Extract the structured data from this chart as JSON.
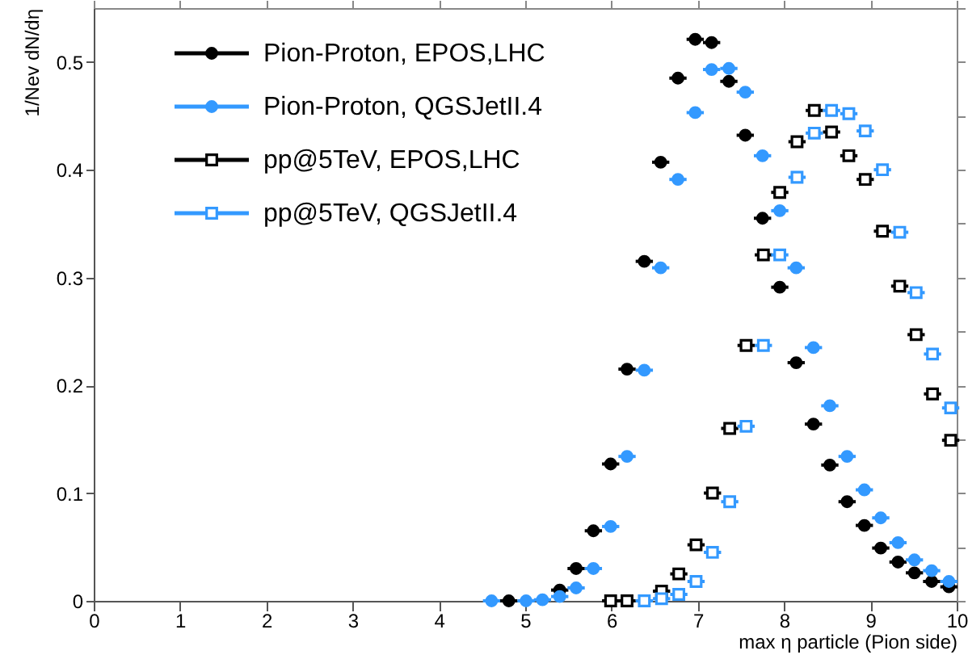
{
  "chart_data": {
    "type": "scatter",
    "xlabel": "max η particle (Pion side)",
    "ylabel": "1/Nev dN/dη",
    "xlim": [
      0,
      10
    ],
    "xticks": [
      0,
      1,
      2,
      3,
      4,
      5,
      6,
      7,
      8,
      9,
      10
    ],
    "ylim": [
      0,
      0.55
    ],
    "yticks": [
      0,
      0.1,
      0.2,
      0.3,
      0.4,
      0.5
    ],
    "grid": false,
    "legend": "top left",
    "series": [
      {
        "name": "Pion-Proton, EPOS,LHC",
        "color": "#000000",
        "marker": "circle",
        "x": [
          4.81,
          5.01,
          5.2,
          5.4,
          5.59,
          5.79,
          5.99,
          6.18,
          6.38,
          6.57,
          6.77,
          6.97,
          7.16,
          7.36,
          7.55,
          7.75,
          7.95,
          8.14,
          8.34,
          8.53,
          8.73,
          8.93,
          9.12,
          9.32,
          9.51,
          9.71,
          9.91
        ],
        "values": [
          0,
          null,
          null,
          0.01,
          0.03,
          0.065,
          0.127,
          0.215,
          0.315,
          0.407,
          0.485,
          0.521,
          0.518,
          0.482,
          0.432,
          0.355,
          0.291,
          0.221,
          0.164,
          0.126,
          0.092,
          0.07,
          0.049,
          0.036,
          0.026,
          0.018,
          0.013
        ],
        "xerrors": [
          0.1,
          null,
          null,
          0.1,
          0.1,
          0.1,
          0.1,
          0.1,
          0.1,
          0.1,
          0.1,
          0.1,
          0.1,
          0.1,
          0.1,
          0.1,
          0.1,
          0.1,
          0.1,
          0.1,
          0.1,
          0.1,
          0.1,
          0.1,
          0.1,
          0.1,
          0.1
        ]
      },
      {
        "name": "Pion-Proton, QGSJetII.4",
        "color": "#3399ff",
        "marker": "circle",
        "x": [
          4.61,
          5.01,
          5.2,
          5.4,
          5.59,
          5.79,
          5.99,
          6.18,
          6.38,
          6.57,
          6.77,
          6.97,
          7.16,
          7.36,
          7.55,
          7.75,
          7.95,
          8.14,
          8.34,
          8.53,
          8.73,
          8.93,
          9.12,
          9.32,
          9.51,
          9.71,
          9.91
        ],
        "values": [
          0,
          0,
          0.001,
          0.004,
          0.012,
          0.03,
          0.069,
          0.134,
          0.214,
          0.309,
          0.391,
          0.453,
          0.493,
          0.494,
          0.472,
          0.413,
          0.362,
          0.309,
          0.235,
          0.181,
          0.134,
          0.103,
          0.077,
          0.054,
          0.038,
          0.028,
          0.018
        ],
        "xerrors": [
          0.1,
          0.1,
          0.1,
          0.1,
          0.1,
          0.1,
          0.1,
          0.1,
          0.1,
          0.1,
          0.1,
          0.1,
          0.1,
          0.1,
          0.1,
          0.1,
          0.1,
          0.1,
          0.1,
          0.1,
          0.1,
          0.1,
          0.1,
          0.1,
          0.1,
          0.1,
          0.1
        ]
      },
      {
        "name": "pp@5TeV, EPOS,LHC",
        "color": "#000000",
        "marker": "square",
        "x": [
          5.99,
          6.18,
          6.38,
          6.58,
          6.78,
          6.98,
          7.17,
          7.37,
          7.56,
          7.76,
          7.95,
          8.15,
          8.35,
          8.55,
          8.75,
          8.94,
          9.14,
          9.34,
          9.53,
          9.72,
          9.93
        ],
        "values": [
          0,
          0,
          null,
          0.009,
          0.025,
          0.052,
          0.1,
          0.16,
          0.237,
          0.321,
          0.379,
          0.426,
          0.455,
          0.435,
          0.413,
          0.391,
          0.343,
          0.292,
          0.247,
          0.192,
          0.149
        ],
        "xerrors": [
          0.1,
          0.1,
          null,
          0.1,
          0.1,
          0.1,
          0.1,
          0.1,
          0.1,
          0.1,
          0.1,
          0.1,
          0.1,
          0.1,
          0.1,
          0.1,
          0.1,
          0.1,
          0.1,
          0.1,
          0.1
        ]
      },
      {
        "name": "pp@5TeV, QGSJetII.4",
        "color": "#3399ff",
        "marker": "square",
        "x": [
          6.38,
          6.58,
          6.78,
          6.98,
          7.17,
          7.37,
          7.56,
          7.76,
          7.95,
          8.15,
          8.35,
          8.55,
          8.75,
          8.94,
          9.14,
          9.34,
          9.53,
          9.72,
          9.93
        ],
        "values": [
          0,
          0.002,
          0.006,
          0.018,
          0.045,
          0.092,
          0.162,
          0.237,
          0.321,
          0.393,
          0.434,
          0.455,
          0.452,
          0.436,
          0.4,
          0.342,
          0.286,
          0.229,
          0.179
        ],
        "xerrors": [
          0.1,
          0.1,
          0.1,
          0.1,
          0.1,
          0.1,
          0.1,
          0.1,
          0.1,
          0.1,
          0.1,
          0.1,
          0.1,
          0.1,
          0.1,
          0.1,
          0.1,
          0.1,
          0.1
        ]
      }
    ]
  }
}
